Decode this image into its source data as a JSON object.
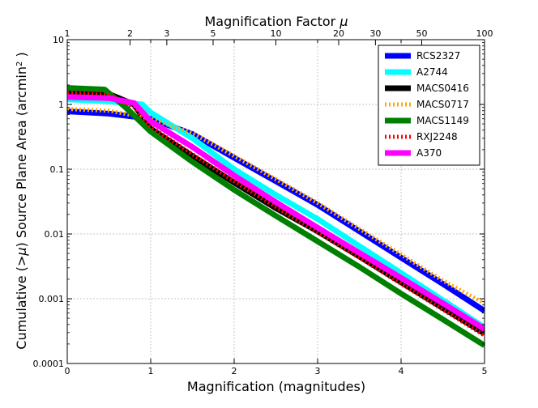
{
  "chart_data": {
    "type": "line",
    "xlabel": "Magnification (magnitudes)",
    "x2label": "Magnification Factor",
    "x2label_symbol": "μ",
    "ylabel_prefix": "Cumulative (",
    "ylabel_symbol": ">μ",
    "ylabel_suffix": ") Source Plane Area (arcmin",
    "ylabel_sup": "2",
    "ylabel_close": " )",
    "xlim": [
      0,
      5
    ],
    "ylim": [
      0.0001,
      10
    ],
    "yscale": "log",
    "grid": true,
    "legend_position": "top-right",
    "x_ticks": [
      0,
      1,
      2,
      3,
      4,
      5
    ],
    "x_tick_labels": [
      "0",
      "1",
      "2",
      "3",
      "4",
      "5"
    ],
    "y_ticks": [
      0.0001,
      0.001,
      0.01,
      0.1,
      1,
      10
    ],
    "y_tick_labels": [
      "0.0001",
      "0.001",
      "0.01",
      "0.1",
      "1",
      "10"
    ],
    "x2_ticks": [
      1,
      2,
      3,
      5,
      10,
      20,
      30,
      50,
      100
    ],
    "x2_tick_labels": [
      "1",
      "2",
      "3",
      "5",
      "10",
      "20",
      "30",
      "50",
      "100"
    ],
    "series": [
      {
        "name": "RCS2327",
        "color": "#0000ff",
        "style": "solid",
        "x": [
          0,
          0.5,
          1.0,
          1.5,
          2.0,
          2.5,
          3.0,
          3.5,
          4.0,
          4.5,
          5.0
        ],
        "y": [
          0.78,
          0.72,
          0.6,
          0.35,
          0.15,
          0.065,
          0.028,
          0.011,
          0.0043,
          0.0017,
          0.00065
        ]
      },
      {
        "name": "A2744",
        "color": "#00ffff",
        "style": "solid",
        "x": [
          0,
          0.5,
          0.9,
          1.0,
          1.5,
          2.0,
          2.5,
          3.0,
          3.5,
          4.0,
          4.5,
          5.0
        ],
        "y": [
          1.2,
          1.12,
          1.0,
          0.75,
          0.3,
          0.1,
          0.04,
          0.017,
          0.0065,
          0.0025,
          0.00095,
          0.00036
        ]
      },
      {
        "name": "MACS0416",
        "color": "#000000",
        "style": "solid",
        "x": [
          0,
          0.5,
          0.8,
          1.0,
          1.5,
          2.0,
          2.5,
          3.0,
          3.5,
          4.0,
          4.5,
          5.0
        ],
        "y": [
          1.6,
          1.45,
          1.0,
          0.42,
          0.16,
          0.062,
          0.025,
          0.011,
          0.0045,
          0.0018,
          0.00072,
          0.00029
        ]
      },
      {
        "name": "MACS0717",
        "color": "#ffa500",
        "style": "dotted",
        "x": [
          0,
          0.5,
          1.0,
          1.5,
          2.0,
          2.5,
          3.0,
          3.5,
          4.0,
          4.5,
          5.0
        ],
        "y": [
          0.85,
          0.8,
          0.6,
          0.36,
          0.16,
          0.07,
          0.03,
          0.012,
          0.0048,
          0.0019,
          0.00085
        ]
      },
      {
        "name": "MACS1149",
        "color": "#008000",
        "style": "solid",
        "x": [
          0,
          0.45,
          0.7,
          1.0,
          1.5,
          2.0,
          2.5,
          3.0,
          3.5,
          4.0,
          4.5,
          5.0
        ],
        "y": [
          1.8,
          1.7,
          0.9,
          0.38,
          0.13,
          0.048,
          0.019,
          0.0077,
          0.0031,
          0.0012,
          0.00048,
          0.00019
        ]
      },
      {
        "name": "RXJ2248",
        "color": "#ff0000",
        "style": "dotted",
        "x": [
          0,
          0.5,
          0.8,
          1.0,
          1.5,
          2.0,
          2.5,
          3.0,
          3.5,
          4.0,
          4.5,
          5.0
        ],
        "y": [
          1.5,
          1.4,
          0.9,
          0.45,
          0.17,
          0.065,
          0.026,
          0.0105,
          0.0043,
          0.0017,
          0.00068,
          0.00027
        ]
      },
      {
        "name": "A370",
        "color": "#ff00ff",
        "style": "solid",
        "x": [
          0,
          0.5,
          0.8,
          1.0,
          1.5,
          2.0,
          2.5,
          3.0,
          3.5,
          4.0,
          4.5,
          5.0
        ],
        "y": [
          1.3,
          1.25,
          1.05,
          0.55,
          0.22,
          0.08,
          0.031,
          0.0125,
          0.0051,
          0.0021,
          0.00085,
          0.00034
        ]
      }
    ]
  }
}
